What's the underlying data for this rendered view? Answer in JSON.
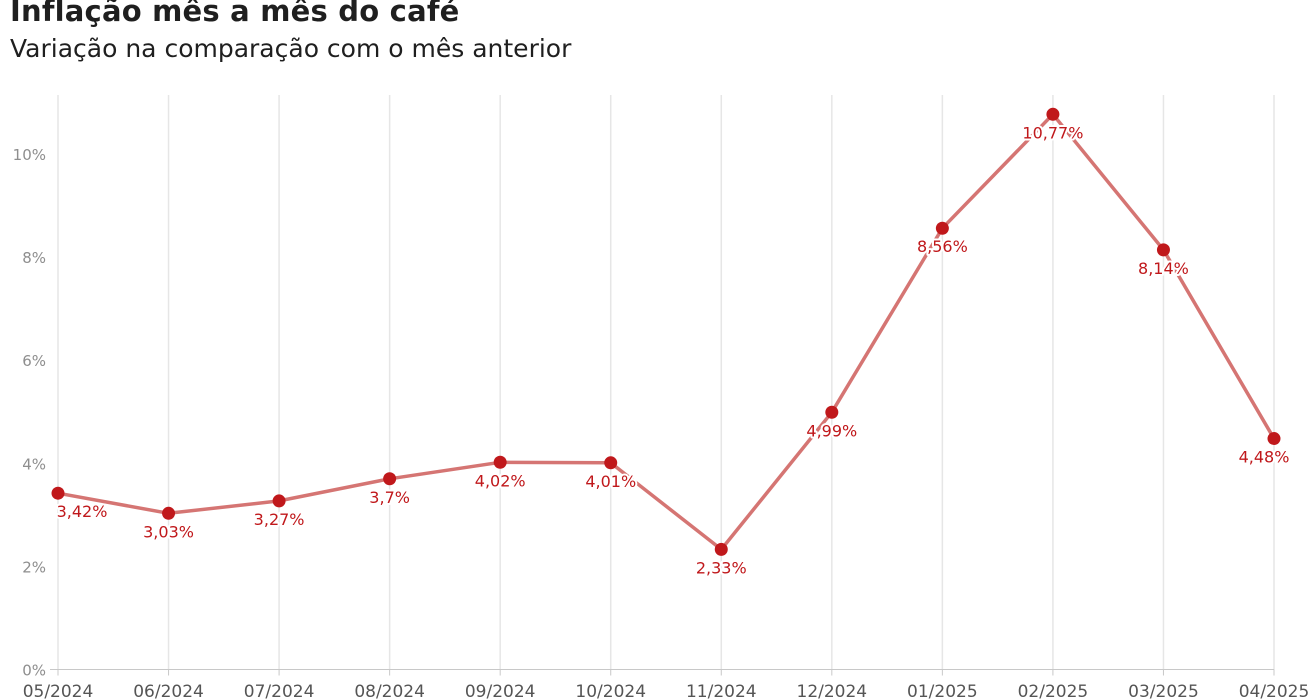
{
  "header": {
    "title": "Inflação mês a mês do café",
    "subtitle": "Variação na comparação com o mês anterior"
  },
  "colors": {
    "line": "#d57573",
    "point": "#c0181b",
    "label": "#c0181b",
    "grid": "#e6e6e6",
    "axis": "#c8c8c8"
  },
  "chart_data": {
    "type": "line",
    "title": "Inflação mês a mês do café",
    "subtitle": "Variação na comparação com o mês anterior",
    "xlabel": "",
    "ylabel": "",
    "categories": [
      "05/2024",
      "06/2024",
      "07/2024",
      "08/2024",
      "09/2024",
      "10/2024",
      "11/2024",
      "12/2024",
      "01/2025",
      "02/2025",
      "03/2025",
      "04/2025"
    ],
    "values": [
      3.42,
      3.03,
      3.27,
      3.7,
      4.02,
      4.01,
      2.33,
      4.99,
      8.56,
      10.77,
      8.14,
      4.48
    ],
    "data_labels": [
      "3,42%",
      "3,03%",
      "3,27%",
      "3,7%",
      "4,02%",
      "4,01%",
      "2,33%",
      "4,99%",
      "8,56%",
      "10,77%",
      "8,14%",
      "4,48%"
    ],
    "yticks": [
      0,
      2,
      4,
      6,
      8,
      10
    ],
    "ytick_labels": [
      "0%",
      "2%",
      "4%",
      "6%",
      "8%",
      "10%"
    ],
    "ylim": [
      0,
      11
    ],
    "grid": "vertical",
    "legend": "none"
  }
}
